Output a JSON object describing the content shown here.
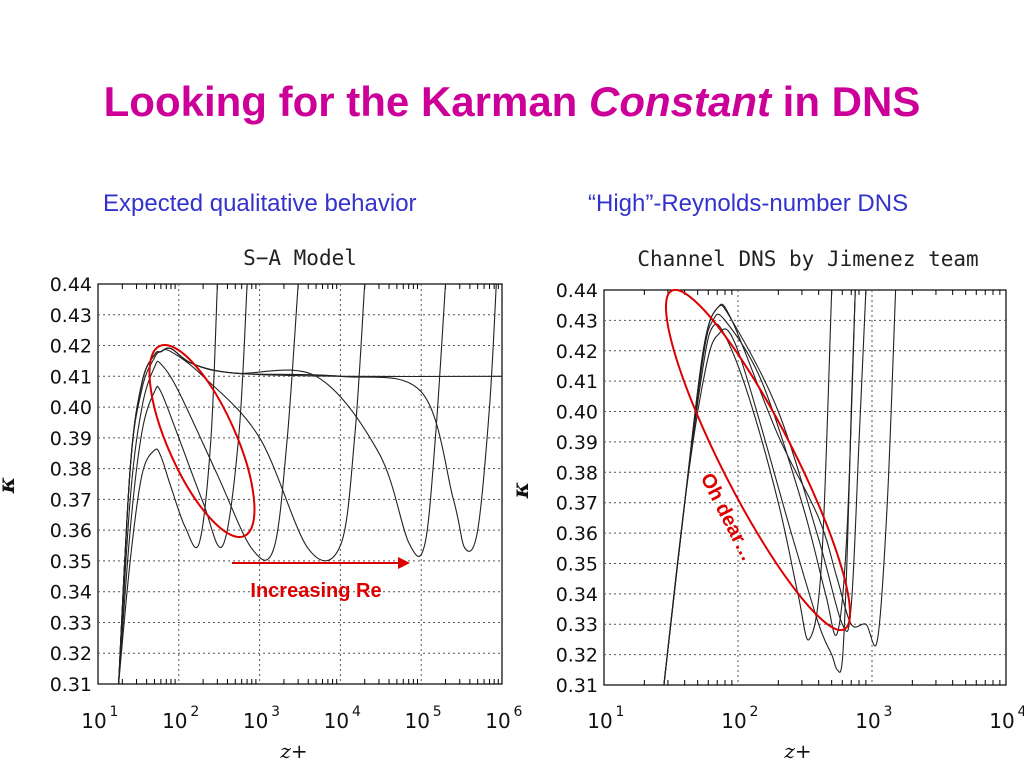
{
  "slide": {
    "title_part1": "Looking for the Karman ",
    "title_italic": "Constant",
    "title_part2": " in DNS",
    "subtitle_left": "Expected qualitative behavior",
    "subtitle_right": "“High”-Reynolds-number DNS"
  },
  "colors": {
    "title": "#cc0099",
    "subtitle": "#3333cc",
    "annotation": "#dd0000",
    "curve": "#222222"
  },
  "chart_data": [
    {
      "type": "line",
      "title": "S−A Model",
      "xlabel": "z+",
      "ylabel": "κ",
      "x_scale": "log",
      "xlim": [
        10,
        1000000
      ],
      "ylim": [
        0.31,
        0.44
      ],
      "xtick_labels": [
        "10",
        "10",
        "10",
        "10",
        "10",
        "10"
      ],
      "xtick_exponents": [
        "1",
        "2",
        "3",
        "4",
        "5",
        "6"
      ],
      "ytick_labels": [
        "0.44",
        "0.43",
        "0.42",
        "0.41",
        "0.40",
        "0.39",
        "0.38",
        "0.37",
        "0.36",
        "0.35",
        "0.34",
        "0.33",
        "0.32",
        "0.31"
      ],
      "grid": true,
      "annotation": {
        "text": "Increasing Re",
        "shape": "arrow"
      },
      "series": [
        {
          "x": [
            18,
            25,
            35,
            50,
            60,
            80,
            120,
            180,
            250,
            300
          ],
          "y": [
            0.31,
            0.35,
            0.378,
            0.386,
            0.384,
            0.374,
            0.361,
            0.356,
            0.39,
            0.44
          ]
        },
        {
          "x": [
            18,
            25,
            35,
            50,
            60,
            100,
            200,
            350,
            550,
            700
          ],
          "y": [
            0.31,
            0.36,
            0.392,
            0.405,
            0.405,
            0.39,
            0.369,
            0.355,
            0.39,
            0.44
          ]
        },
        {
          "x": [
            18,
            25,
            35,
            50,
            60,
            100,
            300,
            800,
            1500,
            2200,
            3000
          ],
          "y": [
            0.31,
            0.37,
            0.4,
            0.413,
            0.414,
            0.405,
            0.378,
            0.354,
            0.354,
            0.39,
            0.44
          ]
        },
        {
          "x": [
            18,
            25,
            35,
            50,
            60,
            80,
            200,
            1000,
            4000,
            10000,
            15000,
            20000
          ],
          "y": [
            0.31,
            0.38,
            0.406,
            0.416,
            0.418,
            0.418,
            0.41,
            0.39,
            0.354,
            0.355,
            0.39,
            0.44
          ]
        },
        {
          "x": [
            18,
            25,
            35,
            50,
            60,
            80,
            150,
            500,
            5000,
            30000,
            70000,
            110000,
            150000,
            200000
          ],
          "y": [
            0.31,
            0.38,
            0.408,
            0.417,
            0.418,
            0.419,
            0.414,
            0.411,
            0.41,
            0.385,
            0.356,
            0.355,
            0.39,
            0.44
          ]
        },
        {
          "x": [
            18,
            25,
            35,
            50,
            60,
            80,
            150,
            500,
            10000,
            100000,
            250000,
            350000,
            500000,
            700000,
            850000
          ],
          "y": [
            0.31,
            0.38,
            0.408,
            0.417,
            0.418,
            0.419,
            0.414,
            0.411,
            0.41,
            0.405,
            0.37,
            0.354,
            0.36,
            0.4,
            0.44
          ]
        },
        {
          "x": [
            18,
            25,
            35,
            50,
            60,
            80,
            150,
            500,
            10000,
            1000000
          ],
          "y": [
            0.31,
            0.38,
            0.408,
            0.417,
            0.418,
            0.419,
            0.414,
            0.411,
            0.41,
            0.41
          ]
        }
      ]
    },
    {
      "type": "line",
      "title": "Channel DNS by Jimenez team",
      "xlabel": "z+",
      "ylabel": "κ",
      "x_scale": "log",
      "xlim": [
        10,
        10000
      ],
      "ylim": [
        0.31,
        0.44
      ],
      "xtick_labels": [
        "10",
        "10",
        "10",
        "10"
      ],
      "xtick_exponents": [
        "1",
        "2",
        "3",
        "4"
      ],
      "ytick_labels": [
        "0.44",
        "0.43",
        "0.42",
        "0.41",
        "0.40",
        "0.39",
        "0.38",
        "0.37",
        "0.36",
        "0.35",
        "0.34",
        "0.33",
        "0.32",
        "0.31"
      ],
      "grid": true,
      "annotation": {
        "text": "Oh dear…",
        "shape": "ellipse"
      },
      "series": [
        {
          "x": [
            28,
            40,
            55,
            65,
            80,
            120,
            200,
            280,
            340,
            420,
            500
          ],
          "y": [
            0.31,
            0.37,
            0.415,
            0.428,
            0.425,
            0.405,
            0.37,
            0.34,
            0.325,
            0.35,
            0.44
          ]
        },
        {
          "x": [
            28,
            40,
            55,
            65,
            80,
            150,
            300,
            450,
            550,
            650,
            750
          ],
          "y": [
            0.31,
            0.37,
            0.418,
            0.43,
            0.43,
            0.41,
            0.37,
            0.34,
            0.327,
            0.36,
            0.44
          ]
        },
        {
          "x": [
            28,
            40,
            55,
            70,
            90,
            200,
            400,
            600,
            700,
            800,
            900
          ],
          "y": [
            0.31,
            0.37,
            0.42,
            0.434,
            0.43,
            0.4,
            0.358,
            0.33,
            0.336,
            0.39,
            0.44
          ]
        },
        {
          "x": [
            28,
            40,
            55,
            70,
            90,
            200,
            400,
            550,
            700,
            900,
            1100,
            1300,
            1500
          ],
          "y": [
            0.31,
            0.37,
            0.42,
            0.434,
            0.43,
            0.392,
            0.365,
            0.345,
            0.33,
            0.33,
            0.325,
            0.37,
            0.44
          ]
        },
        {
          "x": [
            28,
            40,
            55,
            70,
            100,
            250,
            400,
            500,
            550,
            600,
            650,
            700,
            750
          ],
          "y": [
            0.31,
            0.37,
            0.41,
            0.425,
            0.42,
            0.36,
            0.33,
            0.32,
            0.315,
            0.318,
            0.35,
            0.4,
            0.44
          ]
        }
      ]
    }
  ]
}
